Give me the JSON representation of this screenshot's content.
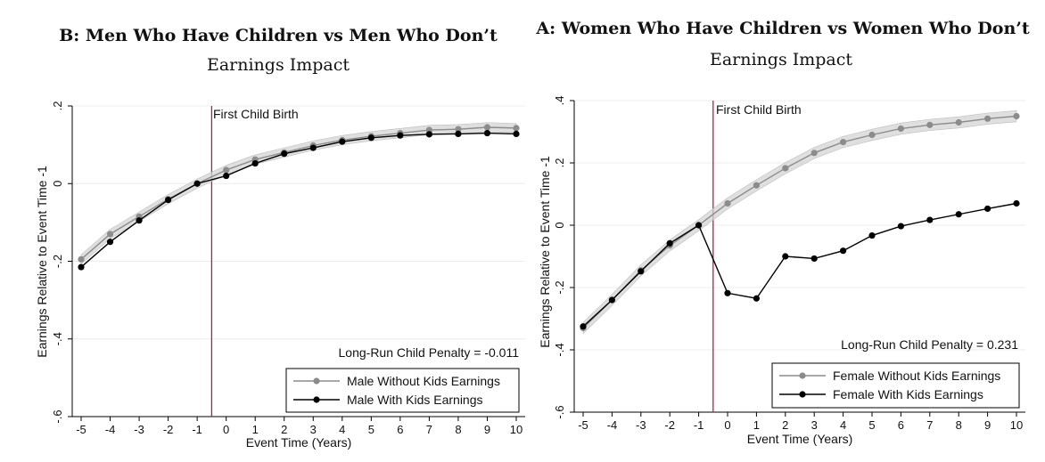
{
  "chart_data": [
    {
      "type": "line",
      "title": "B: Men Who Have Children vs Men Who Don’t",
      "subtitle": "Earnings Impact",
      "xlabel": "Event Time (Years)",
      "ylabel": "Earnings Relative to Event Time -1",
      "x": [
        -5,
        -4,
        -3,
        -2,
        -1,
        0,
        1,
        2,
        3,
        4,
        5,
        6,
        7,
        8,
        9,
        10
      ],
      "xlim": [
        -5,
        10
      ],
      "ylim": [
        -0.6,
        0.2
      ],
      "xticks": [
        "-5",
        "-4",
        "-3",
        "-2",
        "-1",
        "0",
        "1",
        "2",
        "3",
        "4",
        "5",
        "6",
        "7",
        "8",
        "9",
        "10"
      ],
      "yticks": [
        {
          "value": -0.6,
          "label": "-.6"
        },
        {
          "value": -0.4,
          "label": "-.4"
        },
        {
          "value": -0.2,
          "label": "-.2"
        },
        {
          "value": 0,
          "label": "0"
        },
        {
          "value": 0.2,
          "label": ".2"
        }
      ],
      "event_line_x": -0.5,
      "event_line_label": "First Child Birth",
      "annotation": "Long-Run Child Penalty = -0.011",
      "grid": true,
      "legend_position": "bottom-right",
      "series": [
        {
          "name": "Male Without Kids Earnings",
          "color": "#8c8c8c",
          "values": [
            -0.195,
            -0.13,
            -0.085,
            -0.04,
            0,
            0.035,
            0.062,
            0.08,
            0.098,
            0.112,
            0.122,
            0.13,
            0.138,
            0.14,
            0.145,
            0.143
          ],
          "band": 0.012
        },
        {
          "name": "Male With Kids Earnings",
          "color": "#000000",
          "values": [
            -0.215,
            -0.15,
            -0.095,
            -0.042,
            0,
            0.02,
            0.052,
            0.077,
            0.092,
            0.108,
            0.118,
            0.124,
            0.127,
            0.128,
            0.13,
            0.128
          ],
          "band": 0
        }
      ]
    },
    {
      "type": "line",
      "title": "A: Women Who Have Children vs Women Who Don’t",
      "subtitle": "Earnings Impact",
      "xlabel": "Event Time (Years)",
      "ylabel": "Earnings Relative to Event Time -1",
      "x": [
        -5,
        -4,
        -3,
        -2,
        -1,
        0,
        1,
        2,
        3,
        4,
        5,
        6,
        7,
        8,
        9,
        10
      ],
      "xlim": [
        -5,
        10
      ],
      "ylim": [
        -0.6,
        0.4
      ],
      "xticks": [
        "-5",
        "-4",
        "-3",
        "-2",
        "-1",
        "0",
        "1",
        "2",
        "3",
        "4",
        "5",
        "6",
        "7",
        "8",
        "9",
        "10"
      ],
      "yticks": [
        {
          "value": -0.6,
          "label": "-.6"
        },
        {
          "value": -0.4,
          "label": "-.4"
        },
        {
          "value": -0.2,
          "label": "-.2"
        },
        {
          "value": 0,
          "label": "0"
        },
        {
          "value": 0.2,
          "label": ".2"
        },
        {
          "value": 0.4,
          "label": ".4"
        }
      ],
      "event_line_x": -0.5,
      "event_line_label": "First Child Birth",
      "annotation": "Long-Run Child Penalty = 0.231",
      "grid": true,
      "legend_position": "bottom-right",
      "series": [
        {
          "name": "Female Without Kids Earnings",
          "color": "#8c8c8c",
          "values": [
            -0.33,
            -0.24,
            -0.145,
            -0.065,
            0,
            0.07,
            0.128,
            0.183,
            0.232,
            0.267,
            0.29,
            0.31,
            0.322,
            0.33,
            0.342,
            0.35
          ],
          "band": 0.018
        },
        {
          "name": "Female With Kids Earnings",
          "color": "#000000",
          "values": [
            -0.325,
            -0.24,
            -0.148,
            -0.058,
            0,
            -0.218,
            -0.235,
            -0.1,
            -0.107,
            -0.082,
            -0.033,
            -0.003,
            0.017,
            0.035,
            0.053,
            0.07
          ],
          "band": 0
        }
      ]
    }
  ]
}
